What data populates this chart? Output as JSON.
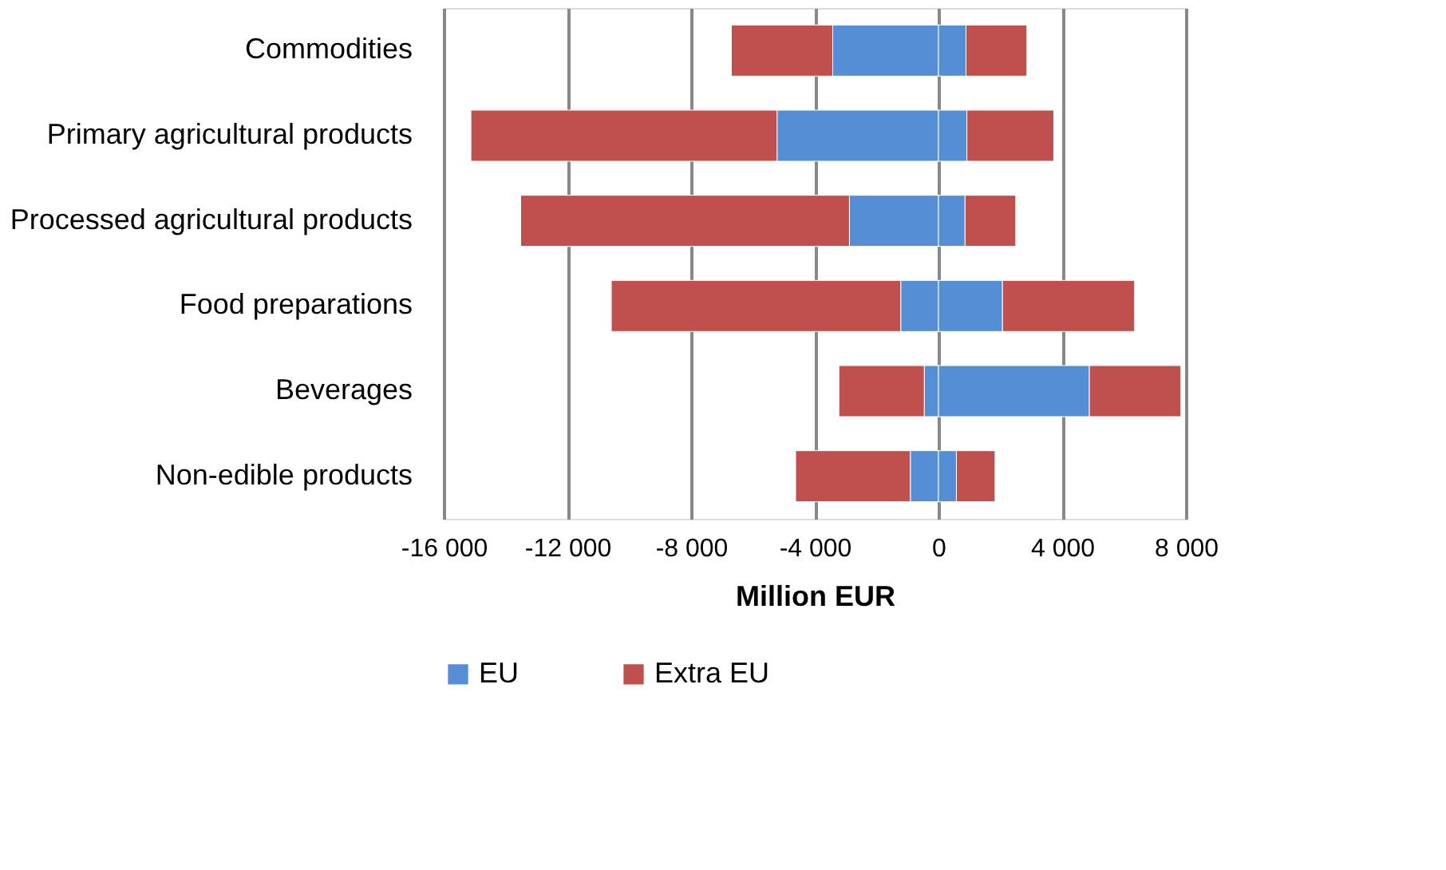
{
  "chart_data": {
    "type": "bar",
    "orientation": "horizontal",
    "stacked": true,
    "categories": [
      "Commodities",
      "Primary agricultural products",
      "Processed agricultural products",
      "Food preparations",
      "Beverages",
      "Non-edible products"
    ],
    "series": [
      {
        "name": "EU",
        "color": "#558ed5",
        "values": [
          -3420,
          -5220,
          -2880,
          -1220,
          -460,
          -910
        ]
      },
      {
        "color": "#558ed5",
        "values": [
          890,
          920,
          860,
          2070,
          4880,
          580
        ]
      },
      {
        "name": "Extra EU",
        "color": "#c0504d",
        "values": [
          -3280,
          -9900,
          -10630,
          -9360,
          -2760,
          -3710
        ]
      },
      {
        "color": "#c0504d",
        "values": [
          1970,
          2810,
          1640,
          4270,
          2960,
          1250
        ]
      }
    ],
    "xlabel": "Million EUR",
    "xlim": [
      -16000,
      8000
    ],
    "xticks": [
      {
        "value": -16000,
        "label": "-16 000"
      },
      {
        "value": -12000,
        "label": "-12 000"
      },
      {
        "value": -8000,
        "label": "-8 000"
      },
      {
        "value": -4000,
        "label": "-4 000"
      },
      0,
      {
        "value": 4000,
        "label": "4 000"
      },
      {
        "value": 8000,
        "label": "8 000"
      }
    ],
    "grid": "x",
    "legend": "bottom"
  }
}
